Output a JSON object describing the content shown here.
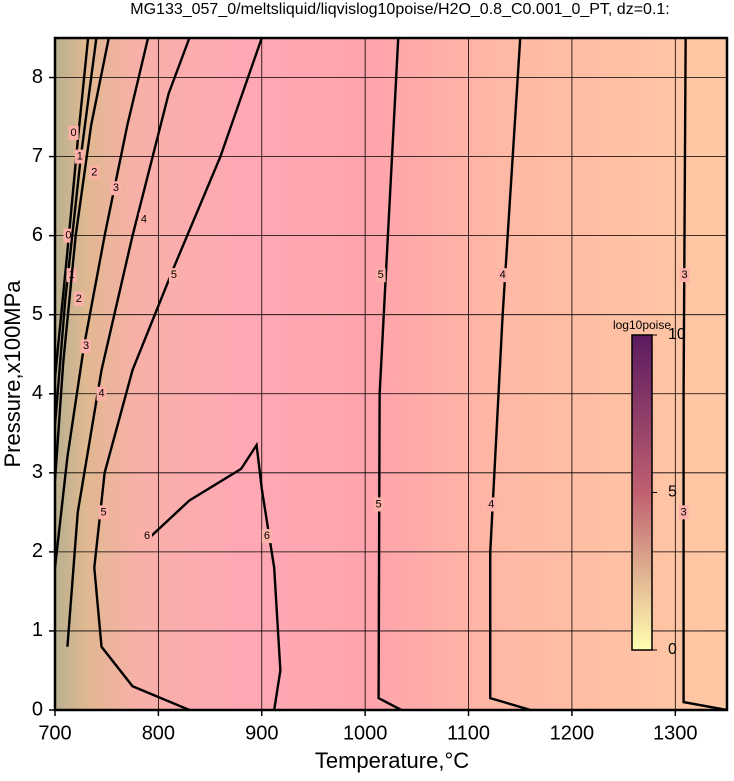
{
  "chart_data": {
    "type": "contour",
    "title": "MG133_057_0/meltsliquid/liqvislog10poise/H2O_0.8_C0.001_0_PT, dz=0.1:",
    "x_label": "Temperature,°C",
    "y_label": "Pressure,x100MPa",
    "xlim": [
      700,
      1350
    ],
    "ylim": [
      0,
      8.5
    ],
    "xticks": [
      700,
      800,
      900,
      1000,
      1100,
      1200,
      1300
    ],
    "yticks": [
      0,
      1,
      2,
      3,
      4,
      5,
      6,
      7,
      8
    ],
    "grid": true,
    "background": [
      {
        "x": 700,
        "color": "#b8b090"
      },
      {
        "x": 730,
        "color": "#e0b890"
      },
      {
        "x": 780,
        "color": "#f8b0a8"
      },
      {
        "x": 880,
        "color": "#ffa8b4"
      },
      {
        "x": 1010,
        "color": "#ffa4ac"
      },
      {
        "x": 1130,
        "color": "#ffb8a4"
      },
      {
        "x": 1350,
        "color": "#ffc8a4"
      }
    ],
    "contours": [
      {
        "level": 0,
        "x": [
          700,
          712,
          722,
          732
        ],
        "y": [
          4.2,
          5.8,
          7.2,
          8.5
        ],
        "labels": [
          {
            "x": 713,
            "y": 6.0
          },
          {
            "x": 718,
            "y": 7.3
          }
        ]
      },
      {
        "level": 1,
        "x": [
          700,
          710,
          725,
          740
        ],
        "y": [
          3.6,
          5.2,
          7.0,
          8.5
        ],
        "labels": [
          {
            "x": 716,
            "y": 5.5
          },
          {
            "x": 724,
            "y": 7.0
          }
        ]
      },
      {
        "level": 2,
        "x": [
          700,
          708,
          720,
          735,
          752
        ],
        "y": [
          2.9,
          4.4,
          6.0,
          7.4,
          8.5
        ],
        "labels": [
          {
            "x": 723,
            "y": 5.2
          },
          {
            "x": 738,
            "y": 6.8
          }
        ]
      },
      {
        "level": 3,
        "x": [
          700,
          712,
          728,
          748,
          770,
          790
        ],
        "y": [
          1.8,
          3.2,
          4.6,
          6.0,
          7.4,
          8.5
        ],
        "labels": [
          {
            "x": 730,
            "y": 4.6
          },
          {
            "x": 759,
            "y": 6.6
          }
        ]
      },
      {
        "level": 4,
        "x": [
          712,
          722,
          745,
          775,
          810,
          830
        ],
        "y": [
          0.8,
          2.5,
          4.3,
          6.0,
          7.8,
          8.5
        ],
        "labels": [
          {
            "x": 745,
            "y": 4.0
          },
          {
            "x": 786,
            "y": 6.2
          }
        ]
      },
      {
        "level": 5,
        "x": [
          830,
          775,
          745,
          738,
          748,
          775,
          815,
          860,
          900
        ],
        "y": [
          0,
          0.3,
          0.8,
          1.8,
          3.0,
          4.3,
          5.6,
          7.0,
          8.5
        ],
        "labels": [
          {
            "x": 747,
            "y": 2.5
          },
          {
            "x": 815,
            "y": 5.5
          }
        ]
      },
      {
        "level": 6,
        "x": [
          793,
          830,
          880,
          895,
          900,
          912,
          918,
          912
        ],
        "y": [
          2.2,
          2.65,
          3.05,
          3.35,
          2.8,
          1.8,
          0.5,
          0
        ],
        "labels": [
          {
            "x": 789,
            "y": 2.2
          },
          {
            "x": 905,
            "y": 2.2
          }
        ]
      },
      {
        "level": 5,
        "x": [
          1035,
          1013,
          1014,
          1022,
          1032
        ],
        "y": [
          0,
          0.15,
          4.0,
          6.0,
          8.5
        ],
        "labels": [
          {
            "x": 1015,
            "y": 5.5
          },
          {
            "x": 1013,
            "y": 2.6
          }
        ]
      },
      {
        "level": 4,
        "x": [
          1160,
          1121,
          1121,
          1133,
          1150
        ],
        "y": [
          0,
          0.15,
          2.0,
          5.0,
          8.5
        ],
        "labels": [
          {
            "x": 1133,
            "y": 5.5
          },
          {
            "x": 1122,
            "y": 2.6
          }
        ]
      },
      {
        "level": 3,
        "x": [
          1350,
          1308,
          1308,
          1310
        ],
        "y": [
          0,
          0.1,
          4.0,
          8.5
        ],
        "labels": [
          {
            "x": 1309,
            "y": 5.5
          },
          {
            "x": 1308,
            "y": 2.5
          }
        ]
      }
    ],
    "colorbar": {
      "label": "log10poise",
      "lim": [
        0,
        10
      ],
      "ticks": [
        0,
        5,
        10
      ],
      "colors": [
        {
          "value": 0,
          "color": "#ffffb0"
        },
        {
          "value": 5,
          "color": "#c06070"
        },
        {
          "value": 10,
          "color": "#5a1a60"
        }
      ]
    }
  }
}
